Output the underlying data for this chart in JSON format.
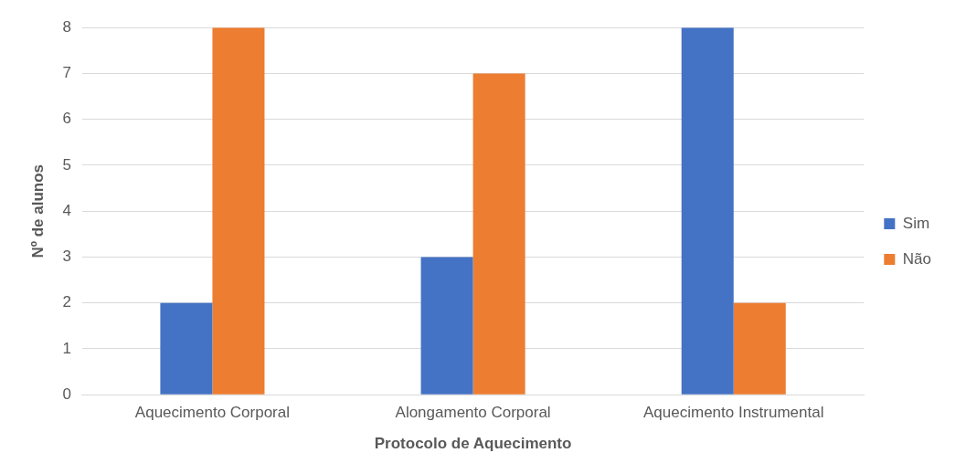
{
  "chart_data": {
    "type": "bar",
    "xlabel": "Protocolo de Aquecimento",
    "ylabel": "Nº de alunos",
    "categories": [
      "Aquecimento Corporal",
      "Alongamento Corporal",
      "Aquecimento Instrumental"
    ],
    "series": [
      {
        "name": "Sim",
        "color": "#4472c4",
        "values": [
          2,
          3,
          8
        ]
      },
      {
        "name": "Não",
        "color": "#ed7d31",
        "values": [
          8,
          7,
          2
        ]
      }
    ],
    "ylim": [
      0,
      8
    ],
    "yticks": [
      0,
      1,
      2,
      3,
      4,
      5,
      6,
      7,
      8
    ],
    "grid": "y",
    "legend": "right"
  }
}
